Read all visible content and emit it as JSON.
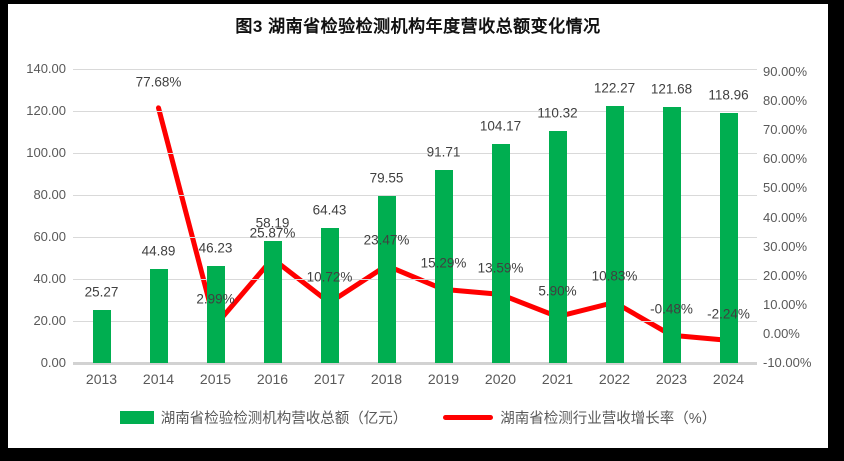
{
  "title": "图3 湖南省检验检测机构年度营收总额变化情况",
  "chart_data": {
    "type": "bar",
    "subtype": "combo-bar-line",
    "categories": [
      "2013",
      "2014",
      "2015",
      "2016",
      "2017",
      "2018",
      "2019",
      "2020",
      "2021",
      "2022",
      "2023",
      "2024"
    ],
    "series": [
      {
        "name": "湖南省检验检测机构营收总额（亿元）",
        "type": "bar",
        "axis": "left",
        "values": [
          25.27,
          44.89,
          46.23,
          58.19,
          64.43,
          79.55,
          91.71,
          104.17,
          110.32,
          122.27,
          121.68,
          118.96
        ]
      },
      {
        "name": "湖南省检测行业营收增长率（%）",
        "type": "line",
        "axis": "right",
        "values": [
          null,
          77.68,
          2.99,
          25.87,
          10.72,
          23.47,
          15.29,
          13.59,
          5.9,
          10.83,
          -0.48,
          -2.24
        ]
      }
    ],
    "left_axis": {
      "min": 0,
      "max": 140,
      "step": 20,
      "tick_format": "0.00"
    },
    "right_axis": {
      "min": -10,
      "max": 90,
      "step": 10,
      "tick_format": "0.00%"
    },
    "grid": true,
    "legend_position": "bottom",
    "data_labels": true
  },
  "colors": {
    "bar": "#00AE50",
    "line": "#FF0000",
    "gridline": "#D9D9D9",
    "axis_line": "#D2D2D2",
    "tick_text": "#595959",
    "label_text": "#404040",
    "frame": "#000000",
    "background": "#FFFFFF"
  }
}
